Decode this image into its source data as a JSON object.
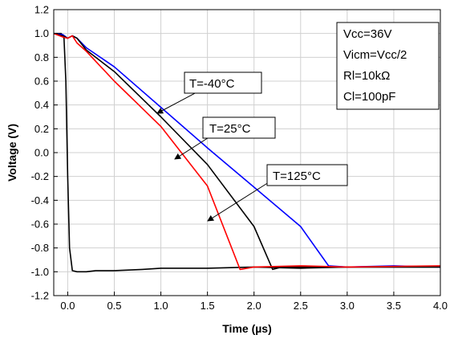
{
  "chart_data": {
    "type": "line",
    "xlabel": "Time (µs)",
    "ylabel": "Voltage (V)",
    "xlim": [
      -0.15,
      4.0
    ],
    "ylim": [
      -1.2,
      1.2
    ],
    "x_ticks": [
      "0.0",
      "0.5",
      "1.0",
      "1.5",
      "2.0",
      "2.5",
      "3.0",
      "3.5",
      "4.0"
    ],
    "x_tick_values": [
      0,
      0.5,
      1.0,
      1.5,
      2.0,
      2.5,
      3.0,
      3.5,
      4.0
    ],
    "y_ticks": [
      "1.2",
      "1.0",
      "0.8",
      "0.6",
      "0.4",
      "0.2",
      "0.0",
      "-0.2",
      "-0.4",
      "-0.6",
      "-0.8",
      "-1.0",
      "-1.2"
    ],
    "y_tick_values": [
      1.2,
      1.0,
      0.8,
      0.6,
      0.4,
      0.2,
      0.0,
      -0.2,
      -0.4,
      -0.6,
      -0.8,
      -1.0,
      -1.2
    ],
    "grid": true,
    "conditions": [
      "Vcc=36V",
      "Vicm=Vcc/2",
      "Rl=10kΩ",
      "Cl=100pF"
    ],
    "annotations": [
      "T=-40°C",
      "T=25°C",
      "T=125°C"
    ],
    "series": [
      {
        "color": "#000000",
        "points": [
          [
            -0.15,
            1.0
          ],
          [
            -0.07,
            1.0
          ],
          [
            -0.04,
            0.96
          ],
          [
            -0.02,
            0.6
          ],
          [
            0.0,
            -0.2
          ],
          [
            0.02,
            -0.8
          ],
          [
            0.05,
            -0.99
          ],
          [
            0.1,
            -1.0
          ],
          [
            0.2,
            -1.0
          ],
          [
            0.3,
            -0.99
          ],
          [
            0.5,
            -0.99
          ],
          [
            0.8,
            -0.98
          ],
          [
            1.0,
            -0.97
          ],
          [
            1.5,
            -0.97
          ],
          [
            2.0,
            -0.96
          ],
          [
            2.5,
            -0.97
          ],
          [
            3.0,
            -0.96
          ],
          [
            3.5,
            -0.96
          ],
          [
            4.0,
            -0.96
          ]
        ]
      },
      {
        "color": "#0000ff",
        "points": [
          [
            -0.15,
            1.0
          ],
          [
            -0.05,
            0.99
          ],
          [
            0.0,
            0.96
          ],
          [
            0.05,
            0.98
          ],
          [
            0.1,
            0.96
          ],
          [
            0.2,
            0.88
          ],
          [
            0.5,
            0.72
          ],
          [
            1.0,
            0.38
          ],
          [
            1.5,
            0.04
          ],
          [
            2.0,
            -0.29
          ],
          [
            2.5,
            -0.62
          ],
          [
            2.8,
            -0.95
          ],
          [
            3.0,
            -0.96
          ],
          [
            3.5,
            -0.95
          ],
          [
            4.0,
            -0.96
          ]
        ]
      },
      {
        "color": "#000000",
        "points": [
          [
            -0.15,
            1.0
          ],
          [
            -0.05,
            0.98
          ],
          [
            0.0,
            0.96
          ],
          [
            0.05,
            0.98
          ],
          [
            0.1,
            0.96
          ],
          [
            0.2,
            0.86
          ],
          [
            0.5,
            0.68
          ],
          [
            1.0,
            0.3
          ],
          [
            1.5,
            -0.1
          ],
          [
            2.0,
            -0.62
          ],
          [
            2.2,
            -0.98
          ],
          [
            2.3,
            -0.96
          ],
          [
            3.0,
            -0.96
          ],
          [
            4.0,
            -0.96
          ]
        ]
      },
      {
        "color": "#ff0000",
        "points": [
          [
            -0.15,
            1.0
          ],
          [
            -0.05,
            0.97
          ],
          [
            0.0,
            0.96
          ],
          [
            0.05,
            0.98
          ],
          [
            0.1,
            0.92
          ],
          [
            0.2,
            0.85
          ],
          [
            0.5,
            0.6
          ],
          [
            1.0,
            0.22
          ],
          [
            1.5,
            -0.28
          ],
          [
            1.85,
            -0.98
          ],
          [
            2.0,
            -0.96
          ],
          [
            2.5,
            -0.95
          ],
          [
            3.0,
            -0.96
          ],
          [
            4.0,
            -0.95
          ]
        ]
      }
    ]
  }
}
